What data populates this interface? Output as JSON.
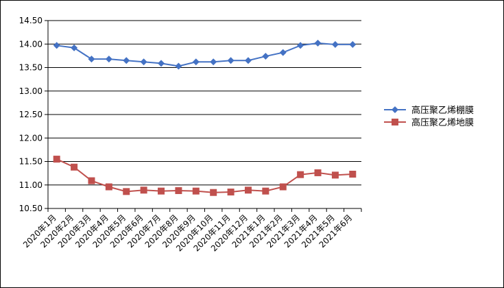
{
  "chart_data": {
    "type": "line",
    "categories": [
      "2020年1月",
      "2020年2月",
      "2020年3月",
      "2020年4月",
      "2020年5月",
      "2020年6月",
      "2020年7月",
      "2020年8月",
      "2020年9月",
      "2020年10月",
      "2020年11月",
      "2020年12月",
      "2021年1月",
      "2021年2月",
      "2021年3月",
      "2021年4月",
      "2021年5月",
      "2021年6月"
    ],
    "ylim": [
      10.5,
      14.5
    ],
    "yticks": [
      "10.50",
      "11.00",
      "11.50",
      "12.00",
      "12.50",
      "13.00",
      "13.50",
      "14.00",
      "14.50"
    ],
    "grid": true,
    "legend_position": "right",
    "series": [
      {
        "name": "高压聚乙烯棚膜",
        "color": "#4472C4",
        "marker": "diamond",
        "values": [
          13.97,
          13.92,
          13.68,
          13.68,
          13.65,
          13.62,
          13.59,
          13.53,
          13.62,
          13.62,
          13.65,
          13.65,
          13.74,
          13.82,
          13.97,
          14.02,
          13.99,
          13.99
        ]
      },
      {
        "name": "高压聚乙烯地膜",
        "color": "#C0504D",
        "marker": "square",
        "values": [
          11.55,
          11.38,
          11.09,
          10.96,
          10.86,
          10.89,
          10.87,
          10.88,
          10.87,
          10.84,
          10.85,
          10.89,
          10.87,
          10.96,
          11.22,
          11.26,
          11.21,
          11.23
        ]
      }
    ]
  }
}
